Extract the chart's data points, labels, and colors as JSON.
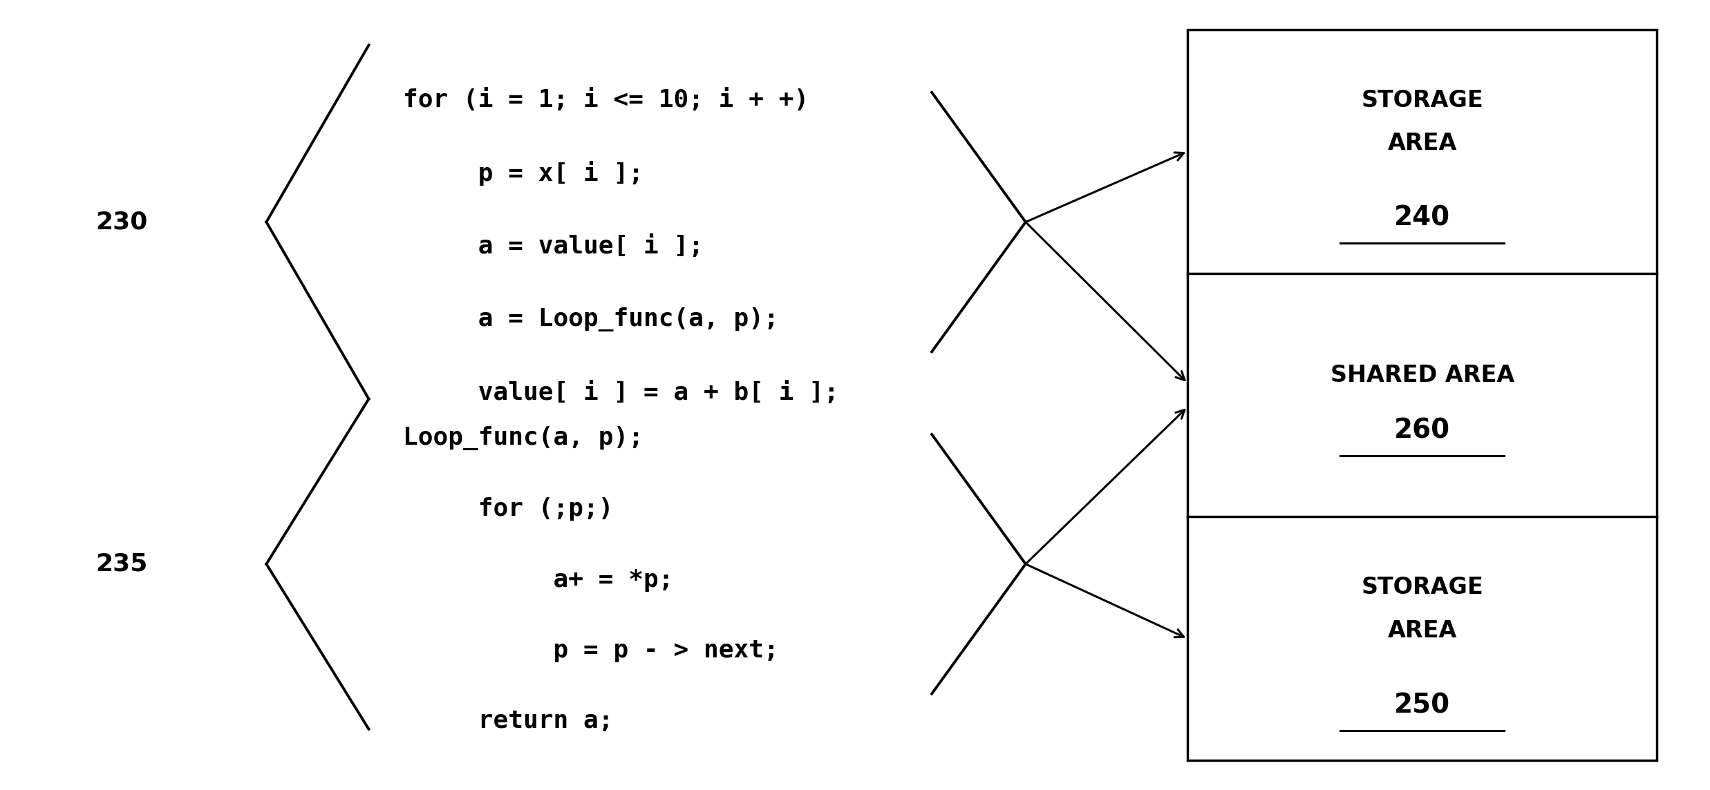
{
  "bg_color": "#ffffff",
  "fig_width": 24.74,
  "fig_height": 11.44,
  "label_230": "230",
  "label_235": "235",
  "code1_lines": [
    "for (i = 1; i <= 10; i + +)",
    "     p = x[ i ];",
    "     a = value[ i ];",
    "     a = Loop_func(a, p);",
    "     value[ i ] = a + b[ i ];"
  ],
  "code2_lines": [
    "Loop_func(a, p);",
    "     for (;p;)",
    "          a+ = *p;",
    "          p = p - > next;",
    "     return a;"
  ],
  "storage1_num": "240",
  "shared_num": "260",
  "storage2_num": "250",
  "font_size_code": 26,
  "font_size_box_label": 24,
  "font_size_box_num": 28,
  "font_size_ref": 26,
  "arrow_color": "#000000",
  "line_color": "#000000",
  "text_color": "#000000"
}
